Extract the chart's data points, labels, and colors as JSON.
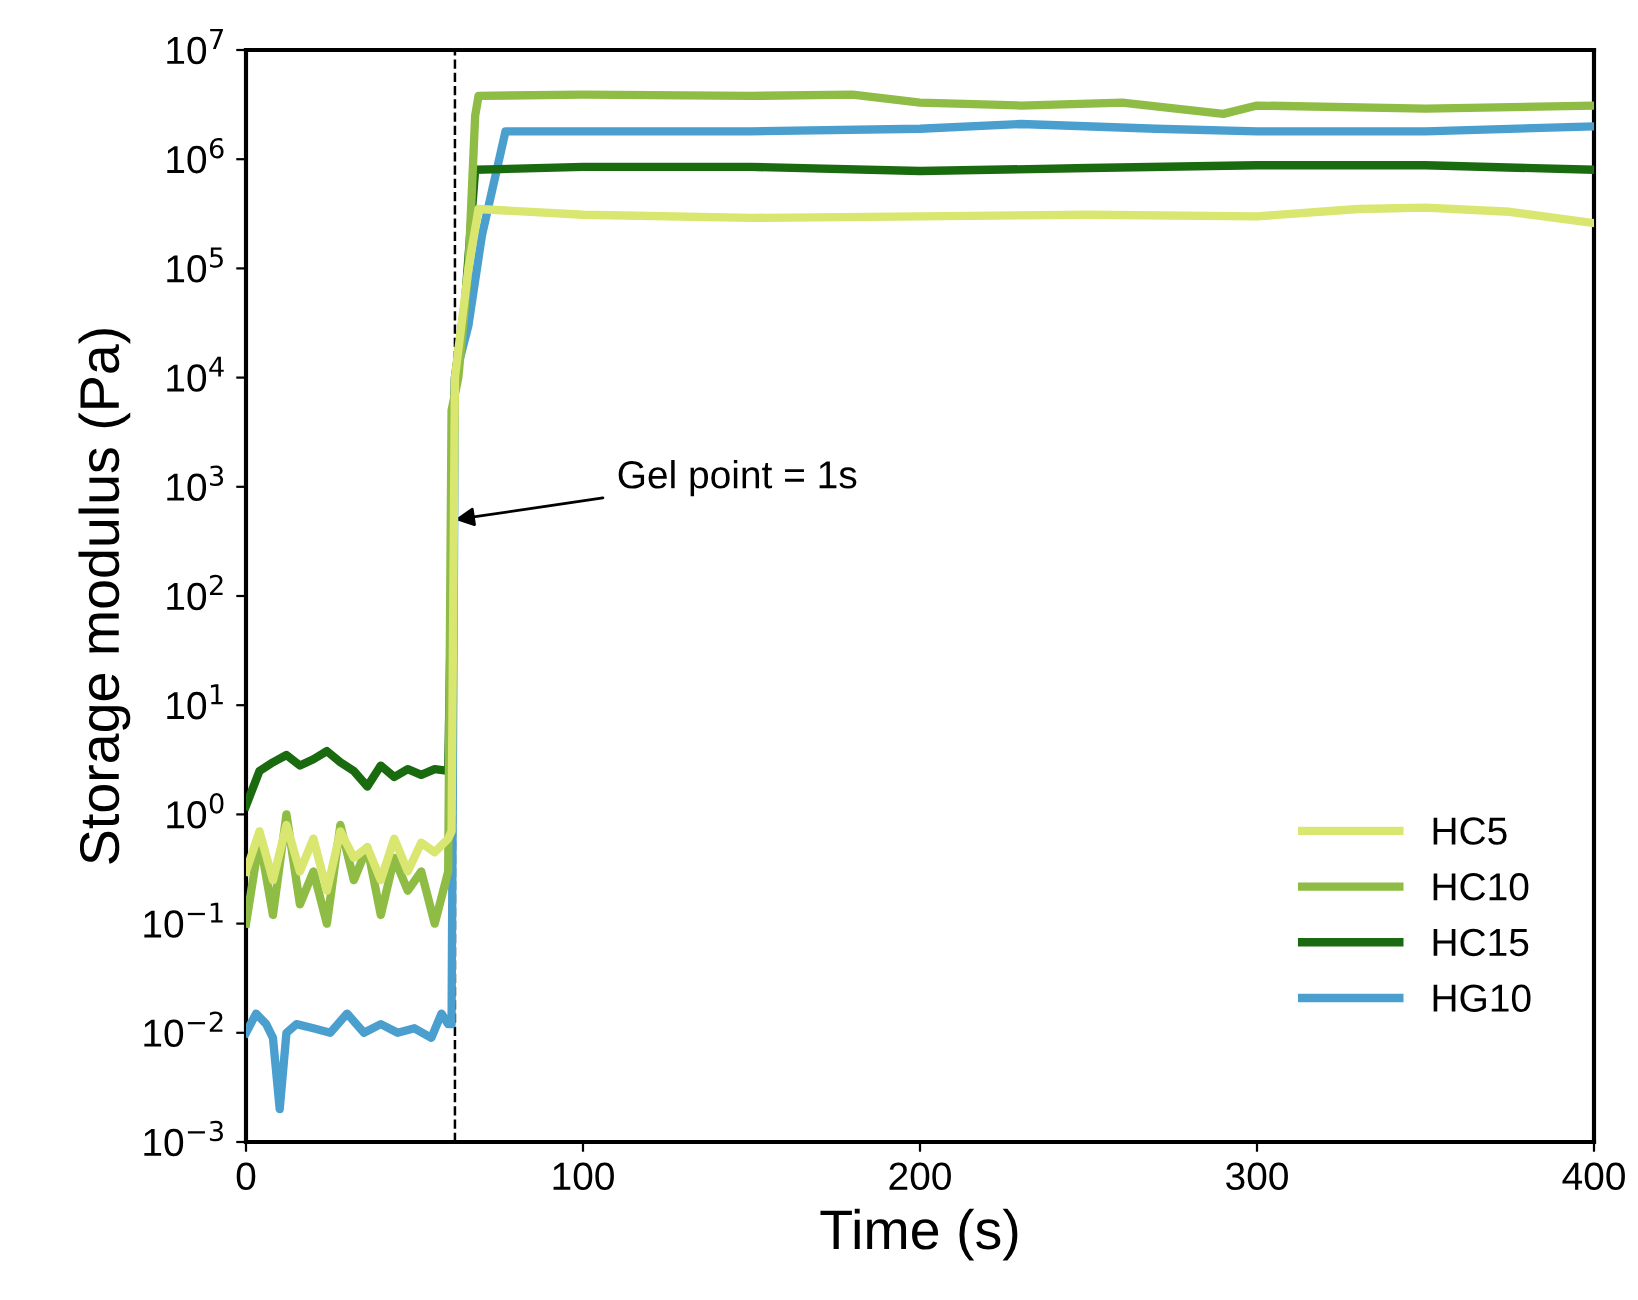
{
  "chart_data": {
    "type": "line",
    "xlabel": "Time (s)",
    "ylabel": "Storage modulus (Pa)",
    "log": "y",
    "xlim": [
      0,
      400
    ],
    "xticks": [
      0,
      100,
      200,
      300,
      400
    ],
    "ylim": [
      0.001,
      10000000
    ],
    "yticks": [
      {
        "value": 0.001,
        "label": "10$^{−3}$"
      },
      {
        "value": 0.01,
        "label": "10$^{−2}$"
      },
      {
        "value": 0.1,
        "label": "10$^{−1}$"
      },
      {
        "value": 1,
        "label": "10$^{0}$"
      },
      {
        "value": 10,
        "label": "10$^{1}$"
      },
      {
        "value": 100,
        "label": "10$^{2}$"
      },
      {
        "value": 1000,
        "label": "10$^{3}$"
      },
      {
        "value": 10000,
        "label": "10$^{4}$"
      },
      {
        "value": 100000,
        "label": "10$^{5}$"
      },
      {
        "value": 1000000,
        "label": "10$^{6}$"
      },
      {
        "value": 10000000,
        "label": "10$^{7}$"
      }
    ],
    "legend": "bottom right",
    "grid": false,
    "marker": "none",
    "line_style": "solid",
    "ref_lines": [
      {
        "axis": "x",
        "value": 62,
        "color": "#000000",
        "line_style": "dashed"
      }
    ],
    "annotations": [
      {
        "text": "Gel point = 1s",
        "x": 62,
        "y": 500
      }
    ],
    "series": [
      {
        "name": "HC5",
        "color": "#d9e66f",
        "x": [
          0,
          4,
          8,
          12,
          16,
          20,
          24,
          28,
          32,
          36,
          40,
          44,
          48,
          52,
          56,
          60,
          61,
          62,
          66,
          69,
          100,
          150,
          200,
          250,
          300,
          330,
          350,
          375,
          400
        ],
        "values": [
          0.3,
          0.7,
          0.25,
          0.8,
          0.3,
          0.6,
          0.2,
          0.7,
          0.4,
          0.5,
          0.25,
          0.6,
          0.3,
          0.55,
          0.45,
          0.6,
          0.7,
          10000,
          100000,
          350000,
          310000,
          290000,
          300000,
          310000,
          300000,
          350000,
          360000,
          330000,
          260000
        ]
      },
      {
        "name": "HC10",
        "color": "#8fbc45",
        "x": [
          0,
          4,
          8,
          12,
          16,
          20,
          24,
          28,
          32,
          36,
          40,
          44,
          48,
          52,
          56,
          60,
          61,
          63,
          66,
          68,
          69,
          100,
          150,
          180,
          200,
          230,
          260,
          290,
          300,
          350,
          400
        ],
        "values": [
          0.1,
          0.6,
          0.12,
          1.0,
          0.15,
          0.3,
          0.1,
          0.8,
          0.25,
          0.5,
          0.12,
          0.4,
          0.2,
          0.3,
          0.1,
          0.3,
          5000,
          10000,
          100000,
          2500000,
          3800000,
          3900000,
          3800000,
          3900000,
          3300000,
          3100000,
          3300000,
          2600000,
          3100000,
          2900000,
          3100000
        ]
      },
      {
        "name": "HC15",
        "color": "#1a6b0f",
        "x": [
          0,
          4,
          8,
          12,
          16,
          20,
          24,
          28,
          32,
          36,
          40,
          44,
          48,
          52,
          56,
          60,
          62,
          65,
          68,
          100,
          150,
          200,
          250,
          300,
          350,
          400
        ],
        "values": [
          1.2,
          2.5,
          3,
          3.5,
          2.8,
          3.2,
          3.8,
          3.0,
          2.5,
          1.8,
          2.8,
          2.2,
          2.6,
          2.3,
          2.6,
          2.5,
          10000,
          50000,
          800000,
          850000,
          850000,
          780000,
          830000,
          880000,
          880000,
          800000
        ]
      },
      {
        "name": "HG10",
        "color": "#4a9fcf",
        "x": [
          0,
          3,
          6,
          8,
          10,
          12,
          15,
          20,
          25,
          30,
          35,
          40,
          45,
          50,
          55,
          58,
          60,
          61,
          62,
          66,
          70,
          77,
          150,
          200,
          230,
          270,
          300,
          350,
          400
        ],
        "values": [
          0.01,
          0.015,
          0.012,
          0.009,
          0.002,
          0.01,
          0.012,
          0.011,
          0.01,
          0.015,
          0.01,
          0.012,
          0.01,
          0.011,
          0.009,
          0.015,
          0.012,
          0.012,
          10000,
          30000,
          200000,
          1800000,
          1800000,
          1900000,
          2100000,
          1900000,
          1800000,
          1800000,
          2000000
        ]
      }
    ]
  }
}
